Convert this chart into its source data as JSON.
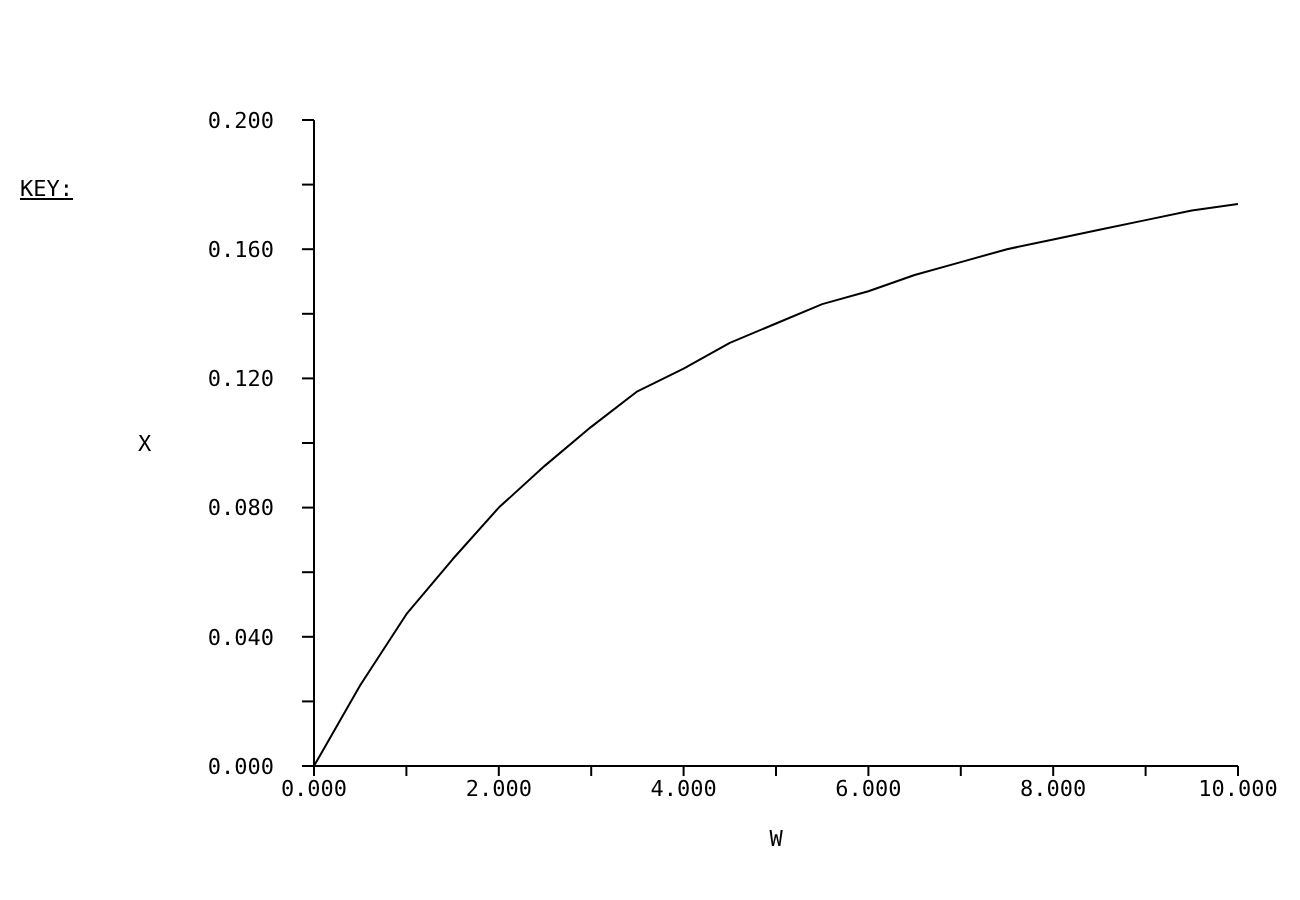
{
  "chart_data": {
    "type": "line",
    "xlabel": "W",
    "ylabel": "X",
    "annotations": [
      "KEY:"
    ],
    "x": [
      0,
      0.5,
      1,
      1.5,
      2,
      2.5,
      3,
      3.5,
      4,
      4.5,
      5,
      5.5,
      6,
      6.5,
      7,
      7.5,
      8,
      8.5,
      9,
      9.5,
      10
    ],
    "series": [
      {
        "color": "#000000",
        "values": [
          0,
          0.025,
          0.047,
          0.064,
          0.08,
          0.093,
          0.105,
          0.116,
          0.123,
          0.131,
          0.137,
          0.143,
          0.147,
          0.152,
          0.156,
          0.16,
          0.163,
          0.166,
          0.169,
          0.172,
          0.174
        ]
      }
    ],
    "xlim": [
      0,
      10
    ],
    "xticks": [
      {
        "value": 0,
        "label": "0.000"
      },
      {
        "value": 1,
        "label": null
      },
      {
        "value": 2,
        "label": "2.000"
      },
      {
        "value": 3,
        "label": null
      },
      {
        "value": 4,
        "label": "4.000"
      },
      {
        "value": 5,
        "label": null
      },
      {
        "value": 6,
        "label": "6.000"
      },
      {
        "value": 7,
        "label": null
      },
      {
        "value": 8,
        "label": "8.000"
      },
      {
        "value": 9,
        "label": null
      },
      {
        "value": 10,
        "label": "10.000"
      }
    ],
    "ylim": [
      0,
      0.2
    ],
    "yticks": [
      {
        "value": 0,
        "label": "0.000"
      },
      {
        "value": 0.02,
        "label": null
      },
      {
        "value": 0.04,
        "label": "0.040"
      },
      {
        "value": 0.06,
        "label": null
      },
      {
        "value": 0.08,
        "label": "0.080"
      },
      {
        "value": 0.1,
        "label": null
      },
      {
        "value": 0.12,
        "label": "0.120"
      },
      {
        "value": 0.14,
        "label": null
      },
      {
        "value": 0.16,
        "label": "0.160"
      },
      {
        "value": 0.18,
        "label": null
      },
      {
        "value": 0.2,
        "label": "0.200"
      }
    ]
  }
}
